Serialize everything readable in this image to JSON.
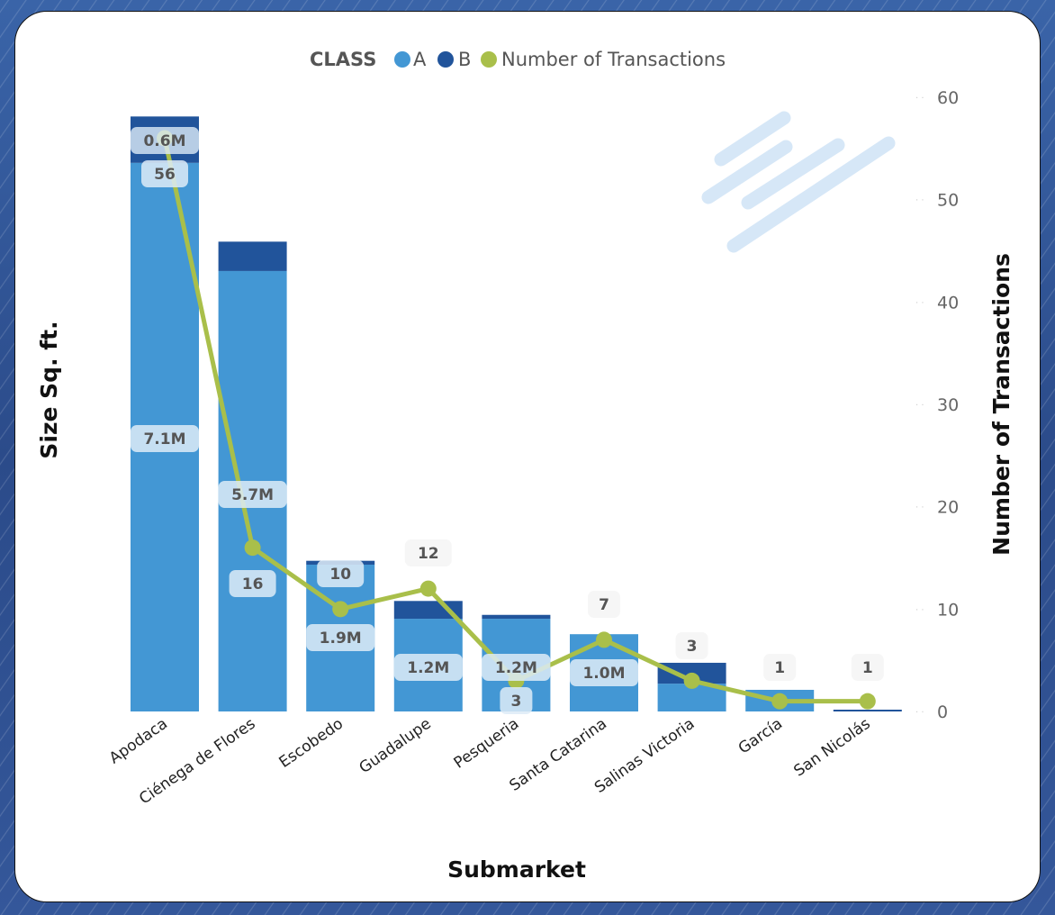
{
  "chart_data": {
    "type": "bar",
    "subtype": "stacked-bar-with-line",
    "categories": [
      "Apodaca",
      "Ciénega de Flores",
      "Escobedo",
      "Guadalupe",
      "Pesqueria",
      "Santa Catarina",
      "Salinas Victoria",
      "García",
      "San Nicolás"
    ],
    "series": [
      {
        "name": "A",
        "axis": "left",
        "unit": "M sq ft",
        "values": [
          7.1,
          5.7,
          1.9,
          1.2,
          1.2,
          1.0,
          0.36,
          0.28,
          0.0
        ],
        "labels": [
          "7.1M",
          "5.7M",
          "1.9M",
          "1.2M",
          "1.2M",
          "1.0M",
          "",
          "",
          ""
        ],
        "color": "#4397d4"
      },
      {
        "name": "B",
        "axis": "left",
        "unit": "M sq ft",
        "values": [
          0.6,
          0.38,
          0.05,
          0.23,
          0.05,
          0.0,
          0.27,
          0.0,
          0.02
        ],
        "labels": [
          "0.6M",
          "",
          "",
          "",
          "",
          "",
          "",
          "",
          ""
        ],
        "color": "#21549b"
      },
      {
        "name": "Number of Transactions",
        "axis": "right",
        "type": "line",
        "values": [
          56,
          16,
          10,
          12,
          3,
          7,
          3,
          1,
          1
        ],
        "labels": [
          "56",
          "16",
          "10",
          "12",
          "3",
          "7",
          "3",
          "1",
          "1"
        ],
        "color": "#a9bf4a"
      }
    ],
    "legend": {
      "title": "CLASS",
      "entries": [
        "A",
        "B",
        "Number of Transactions"
      ],
      "placement": "top-center"
    },
    "xlabel": "Submarket",
    "ylabel": "Size Sq. ft.",
    "y2label": "Number of Transactions",
    "ylim": [
      0,
      7.7
    ],
    "y2lim": [
      0,
      60
    ],
    "y2ticks": [
      "0",
      "10",
      "20",
      "30",
      "40",
      "50",
      "60"
    ],
    "grid": false
  }
}
